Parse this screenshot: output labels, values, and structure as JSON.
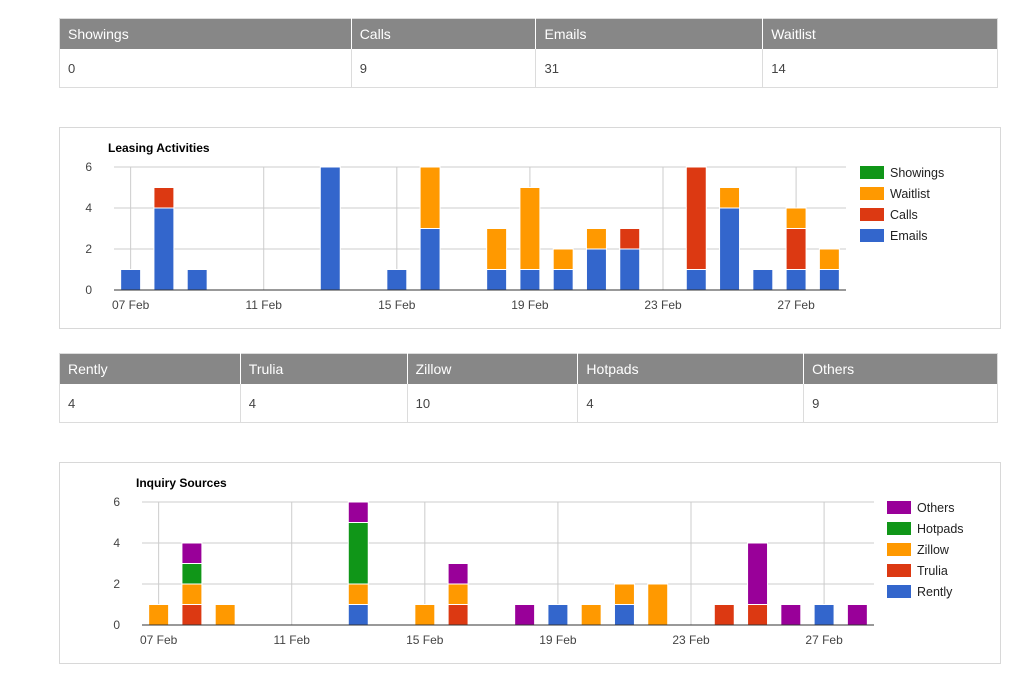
{
  "summary": {
    "headers": [
      "Showings",
      "Calls",
      "Emails",
      "Waitlist"
    ],
    "values": [
      "0",
      "9",
      "31",
      "14"
    ]
  },
  "sources": {
    "headers": [
      "Rently",
      "Trulia",
      "Zillow",
      "Hotpads",
      "Others"
    ],
    "values": [
      "4",
      "4",
      "10",
      "4",
      "9"
    ]
  },
  "colors": {
    "header_bg": "#878787",
    "blue": "#3366cc",
    "red": "#dc3912",
    "orange": "#ff9900",
    "green": "#109618",
    "purple": "#990099"
  },
  "chart_data": [
    {
      "type": "bar",
      "stacked": true,
      "title": "Leasing Activities",
      "x": [
        "07 Feb",
        "08 Feb",
        "09 Feb",
        "10 Feb",
        "11 Feb",
        "12 Feb",
        "13 Feb",
        "14 Feb",
        "15 Feb",
        "16 Feb",
        "17 Feb",
        "18 Feb",
        "19 Feb",
        "20 Feb",
        "21 Feb",
        "22 Feb",
        "23 Feb",
        "24 Feb",
        "25 Feb",
        "26 Feb",
        "27 Feb",
        "28 Feb"
      ],
      "x_ticks": [
        "07 Feb",
        "11 Feb",
        "15 Feb",
        "19 Feb",
        "23 Feb",
        "27 Feb"
      ],
      "y_ticks": [
        0,
        2,
        4,
        6
      ],
      "ylim": [
        0,
        6
      ],
      "grid": true,
      "legend_position": "right",
      "legend_order": [
        "Showings",
        "Waitlist",
        "Calls",
        "Emails"
      ],
      "series": [
        {
          "name": "Emails",
          "color": "#3366cc",
          "values": [
            1,
            4,
            1,
            0,
            0,
            0,
            6,
            0,
            1,
            3,
            0,
            1,
            1,
            1,
            2,
            2,
            0,
            1,
            4,
            1,
            1,
            1
          ]
        },
        {
          "name": "Calls",
          "color": "#dc3912",
          "values": [
            0,
            1,
            0,
            0,
            0,
            0,
            0,
            0,
            0,
            0,
            0,
            0,
            0,
            0,
            0,
            1,
            0,
            5,
            0,
            0,
            2,
            0
          ]
        },
        {
          "name": "Waitlist",
          "color": "#ff9900",
          "values": [
            0,
            0,
            0,
            0,
            0,
            0,
            0,
            0,
            0,
            3,
            0,
            2,
            4,
            1,
            1,
            0,
            0,
            0,
            1,
            0,
            1,
            1
          ]
        },
        {
          "name": "Showings",
          "color": "#109618",
          "values": [
            0,
            0,
            0,
            0,
            0,
            0,
            0,
            0,
            0,
            0,
            0,
            0,
            0,
            0,
            0,
            0,
            0,
            0,
            0,
            0,
            0,
            0
          ]
        }
      ]
    },
    {
      "type": "bar",
      "stacked": true,
      "title": "Inquiry Sources",
      "x": [
        "07 Feb",
        "08 Feb",
        "09 Feb",
        "10 Feb",
        "11 Feb",
        "12 Feb",
        "13 Feb",
        "14 Feb",
        "15 Feb",
        "16 Feb",
        "17 Feb",
        "18 Feb",
        "19 Feb",
        "20 Feb",
        "21 Feb",
        "22 Feb",
        "23 Feb",
        "24 Feb",
        "25 Feb",
        "26 Feb",
        "27 Feb",
        "28 Feb"
      ],
      "x_ticks": [
        "07 Feb",
        "11 Feb",
        "15 Feb",
        "19 Feb",
        "23 Feb",
        "27 Feb"
      ],
      "y_ticks": [
        0,
        2,
        4,
        6
      ],
      "ylim": [
        0,
        6
      ],
      "grid": true,
      "legend_position": "right",
      "legend_order": [
        "Others",
        "Hotpads",
        "Zillow",
        "Trulia",
        "Rently"
      ],
      "series": [
        {
          "name": "Rently",
          "color": "#3366cc",
          "values": [
            0,
            0,
            0,
            0,
            0,
            0,
            1,
            0,
            0,
            0,
            0,
            0,
            1,
            0,
            1,
            0,
            0,
            0,
            0,
            0,
            1,
            0
          ]
        },
        {
          "name": "Trulia",
          "color": "#dc3912",
          "values": [
            0,
            1,
            0,
            0,
            0,
            0,
            0,
            0,
            0,
            1,
            0,
            0,
            0,
            0,
            0,
            0,
            0,
            1,
            1,
            0,
            0,
            0
          ]
        },
        {
          "name": "Zillow",
          "color": "#ff9900",
          "values": [
            1,
            1,
            1,
            0,
            0,
            0,
            1,
            0,
            1,
            1,
            0,
            0,
            0,
            1,
            1,
            2,
            0,
            0,
            0,
            0,
            0,
            0
          ]
        },
        {
          "name": "Hotpads",
          "color": "#109618",
          "values": [
            0,
            1,
            0,
            0,
            0,
            0,
            3,
            0,
            0,
            0,
            0,
            0,
            0,
            0,
            0,
            0,
            0,
            0,
            0,
            0,
            0,
            0
          ]
        },
        {
          "name": "Others",
          "color": "#990099",
          "values": [
            0,
            1,
            0,
            0,
            0,
            0,
            1,
            0,
            0,
            1,
            0,
            1,
            0,
            0,
            0,
            0,
            0,
            0,
            3,
            1,
            0,
            1
          ]
        }
      ]
    }
  ]
}
